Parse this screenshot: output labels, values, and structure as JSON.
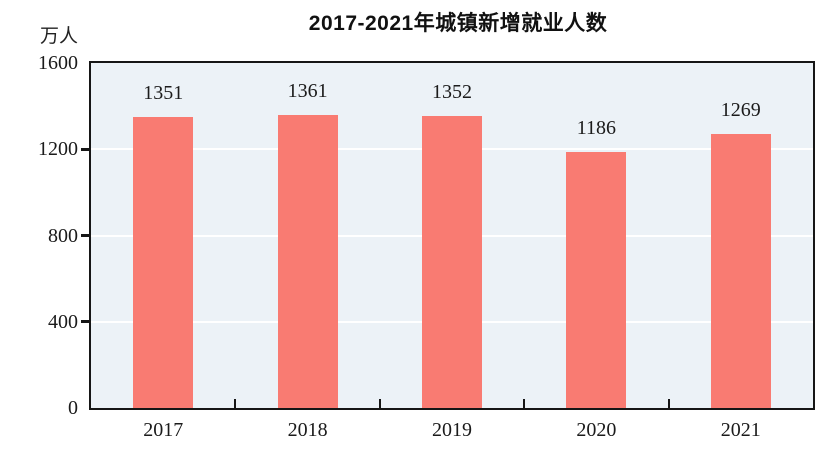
{
  "chart_data": {
    "type": "bar",
    "title": "2017-2021年城镇新增就业人数",
    "ylabel": "万人",
    "xlabel": "",
    "categories": [
      "2017",
      "2018",
      "2019",
      "2020",
      "2021"
    ],
    "values": [
      1351,
      1361,
      1352,
      1186,
      1269
    ],
    "ylim": [
      0,
      1600
    ],
    "yticks": [
      0,
      400,
      800,
      1200,
      1600
    ],
    "grid": "horizontal gridlines at 400, 800, 1200 (white, behind bars)",
    "legend": "none",
    "bar_color": "#f97b72",
    "plot_bg_color": "#ecf2f7",
    "grid_color": "#ffffff",
    "axis_color": "#161616",
    "text_color": "#1b1b1b",
    "title_color": "#111111"
  }
}
